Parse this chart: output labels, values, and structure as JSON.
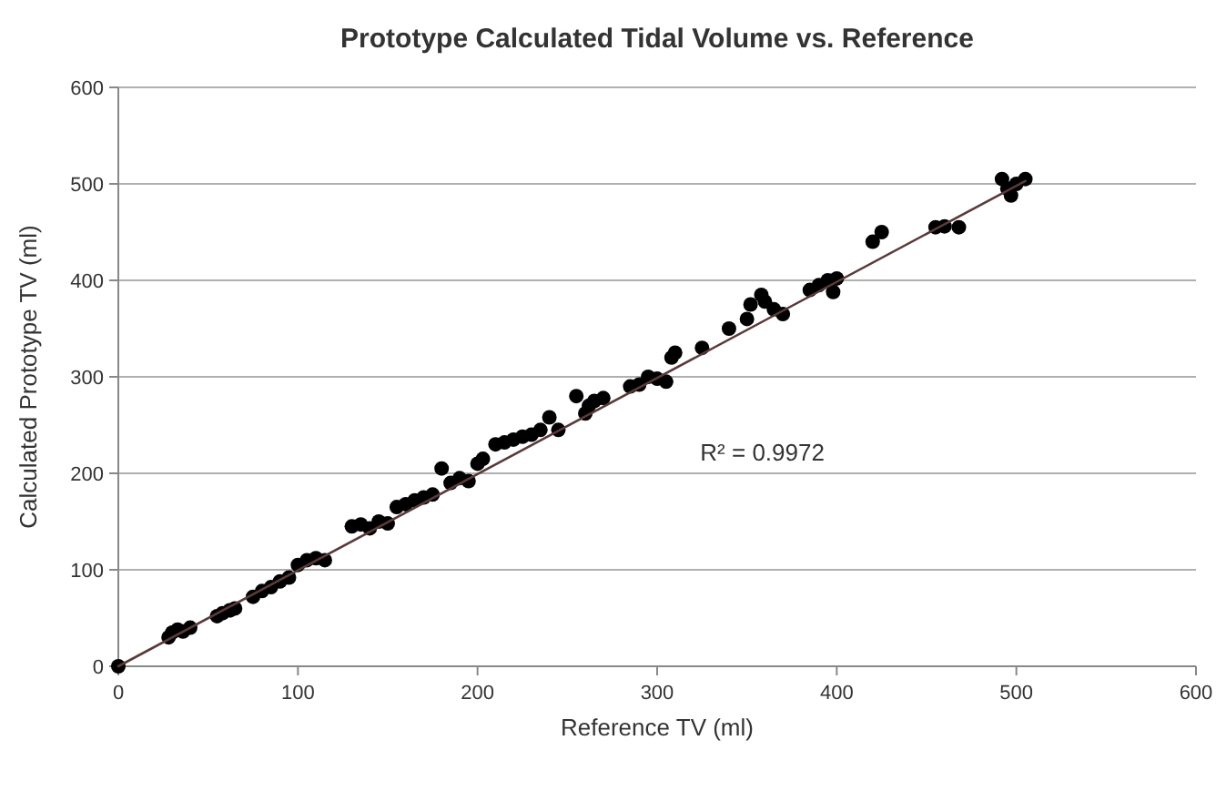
{
  "chart_data": {
    "type": "scatter",
    "title": "Prototype Calculated Tidal Volume vs. Reference",
    "xlabel": "Reference TV (ml)",
    "ylabel": "Calculated Prototype TV (ml)",
    "xlim": [
      0,
      600
    ],
    "xticks": [
      0,
      100,
      200,
      300,
      400,
      500,
      600
    ],
    "ylim": [
      0,
      600
    ],
    "yticks": [
      0,
      100,
      200,
      300,
      400,
      500,
      600
    ],
    "grid": "y",
    "annotations": [
      "R² = 0.9972"
    ],
    "series": [
      {
        "color": "#000000",
        "marker": "circle",
        "x": [
          0,
          28,
          30,
          33,
          36,
          40,
          55,
          58,
          62,
          65,
          75,
          80,
          85,
          90,
          95,
          100,
          105,
          110,
          115,
          130,
          135,
          140,
          145,
          150,
          155,
          160,
          165,
          170,
          175,
          180,
          185,
          190,
          195,
          200,
          203,
          210,
          215,
          220,
          225,
          230,
          235,
          240,
          245,
          255,
          260,
          262,
          265,
          270,
          285,
          290,
          295,
          300,
          305,
          308,
          310,
          325,
          340,
          350,
          352,
          358,
          360,
          365,
          370,
          385,
          390,
          395,
          398,
          400,
          420,
          425,
          455,
          460,
          468,
          492,
          495,
          497,
          500,
          505
        ],
        "values": [
          0,
          30,
          35,
          38,
          36,
          40,
          52,
          55,
          58,
          60,
          72,
          78,
          82,
          88,
          92,
          105,
          110,
          112,
          110,
          145,
          147,
          143,
          150,
          148,
          165,
          168,
          172,
          175,
          178,
          205,
          190,
          195,
          192,
          210,
          215,
          230,
          232,
          235,
          238,
          240,
          245,
          258,
          245,
          280,
          262,
          270,
          275,
          278,
          290,
          292,
          300,
          298,
          295,
          320,
          325,
          330,
          350,
          360,
          375,
          385,
          378,
          370,
          365,
          390,
          395,
          400,
          388,
          402,
          440,
          450,
          455,
          456,
          455,
          505,
          495,
          488,
          500,
          505
        ]
      },
      {
        "type": "line",
        "color": "#5a3a3a",
        "x": [
          0,
          505
        ],
        "values": [
          0,
          503
        ],
        "marker": "none"
      }
    ]
  }
}
